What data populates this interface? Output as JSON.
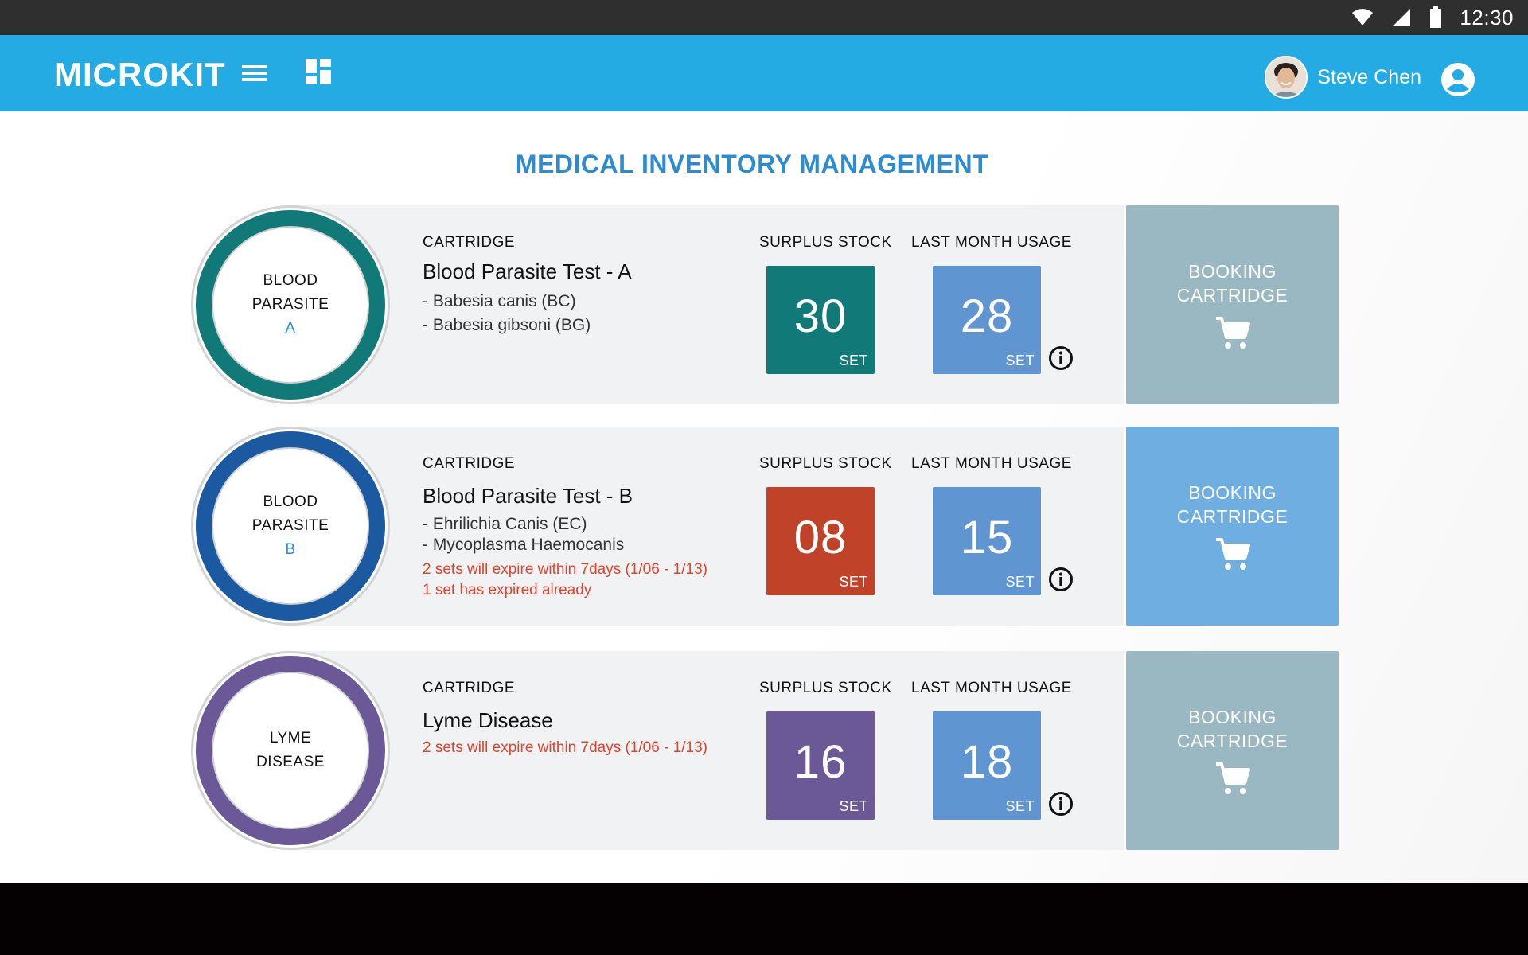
{
  "status_bar": {
    "time": "12:30"
  },
  "app_bar": {
    "brand": "MICROKIT",
    "user_name": "Steve Chen"
  },
  "page": {
    "title": "MEDICAL INVENTORY MANAGEMENT"
  },
  "labels": {
    "cartridge": "CARTRIDGE",
    "surplus_stock": "SURPLUS STOCK",
    "last_month_usage": "LAST MONTH USAGE",
    "unit": "SET",
    "booking_line1": "BOOKING",
    "booking_line2": "CARTRIDGE"
  },
  "items": [
    {
      "badge_line1": "BLOOD",
      "badge_line2": "PARASITE",
      "badge_letter": "A",
      "name": "Blood Parasite Test - A",
      "details": [
        "- Babesia canis (BC)",
        "- Babesia gibsoni (BG)"
      ],
      "warnings": [],
      "surplus": "30",
      "usage": "28",
      "ring_color": "#117a78",
      "surplus_color": "#117a78",
      "usage_color": "#5f95d0",
      "booking_color": "#99b8c2"
    },
    {
      "badge_line1": "BLOOD",
      "badge_line2": "PARASITE",
      "badge_letter": "B",
      "name": "Blood Parasite Test - B",
      "details": [
        "- Ehrilichia Canis (EC)",
        "- Mycoplasma Haemocanis"
      ],
      "warnings": [
        "2 sets will expire within 7days (1/06 - 1/13)",
        "1 set has expired already"
      ],
      "surplus": "08",
      "usage": "15",
      "ring_color": "#1b5aa0",
      "surplus_color": "#c04228",
      "usage_color": "#5f95d0",
      "booking_color": "#6eaee0"
    },
    {
      "badge_line1": "LYME",
      "badge_line2": "DISEASE",
      "badge_letter": "",
      "name": "Lyme Disease",
      "details": [],
      "warnings": [
        "2 sets will expire within 7days (1/06 - 1/13)"
      ],
      "surplus": "16",
      "usage": "18",
      "ring_color": "#6a5897",
      "surplus_color": "#6a5897",
      "usage_color": "#5f95d0",
      "booking_color": "#99b8c2"
    }
  ],
  "colors": {
    "app_bar": "#25abe3",
    "title": "#2d8bd0",
    "warning": "#e0442b"
  }
}
